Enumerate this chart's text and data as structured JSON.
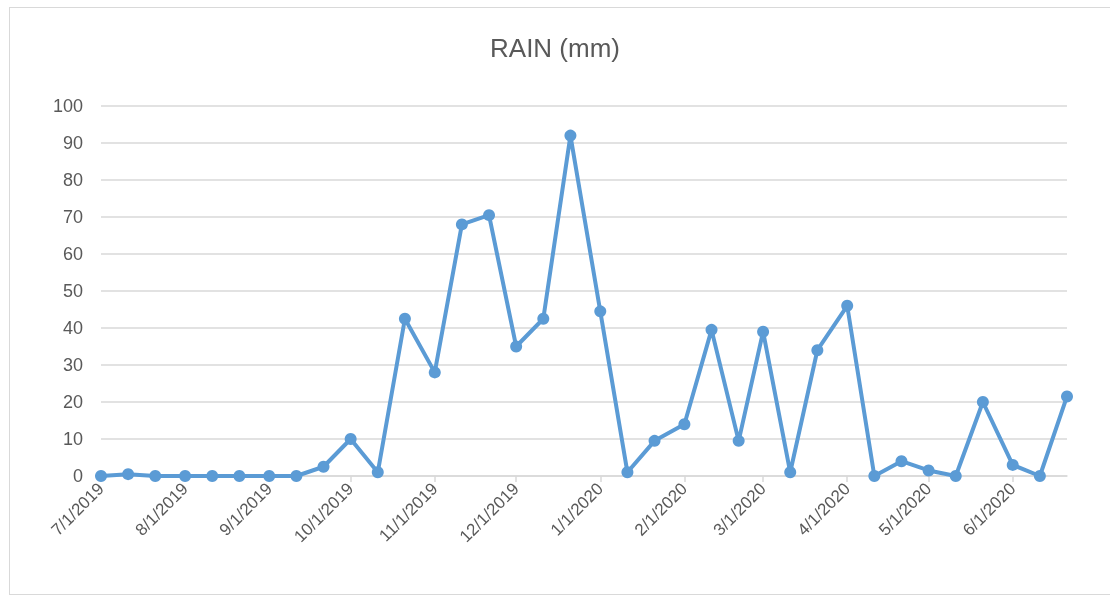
{
  "chart_data": {
    "type": "line",
    "title": "RAIN (mm)",
    "x": [
      "2019-07-01",
      "2019-07-11",
      "2019-07-21",
      "2019-08-01",
      "2019-08-11",
      "2019-08-21",
      "2019-09-01",
      "2019-09-11",
      "2019-09-21",
      "2019-10-01",
      "2019-10-11",
      "2019-10-21",
      "2019-11-01",
      "2019-11-11",
      "2019-11-21",
      "2019-12-01",
      "2019-12-11",
      "2019-12-21",
      "2020-01-01",
      "2020-01-11",
      "2020-01-21",
      "2020-02-01",
      "2020-02-11",
      "2020-02-21",
      "2020-03-01",
      "2020-03-11",
      "2020-03-21",
      "2020-04-01",
      "2020-04-11",
      "2020-04-21",
      "2020-05-01",
      "2020-05-11",
      "2020-05-21",
      "2020-06-01",
      "2020-06-11",
      "2020-06-21"
    ],
    "values": [
      0,
      0.5,
      0,
      0,
      0,
      0,
      0,
      0,
      2.5,
      10,
      1,
      42.5,
      28,
      68,
      70.5,
      35,
      42.5,
      92,
      44.5,
      1,
      9.5,
      14,
      39.5,
      9.5,
      39,
      1,
      34,
      46,
      0,
      4,
      1.5,
      0,
      20,
      3,
      0,
      21.5
    ],
    "color": "#5b9bd5",
    "xlim": [
      "2019-07-01",
      "2020-06-21"
    ],
    "xticks": [
      {
        "value": "2019-07-01",
        "label": "7/1/2019"
      },
      {
        "value": "2019-08-01",
        "label": "8/1/2019"
      },
      {
        "value": "2019-09-01",
        "label": "9/1/2019"
      },
      {
        "value": "2019-10-01",
        "label": "10/1/2019"
      },
      {
        "value": "2019-11-01",
        "label": "11/1/2019"
      },
      {
        "value": "2019-12-01",
        "label": "12/1/2019"
      },
      {
        "value": "2020-01-01",
        "label": "1/1/2020"
      },
      {
        "value": "2020-02-01",
        "label": "2/1/2020"
      },
      {
        "value": "2020-03-01",
        "label": "3/1/2020"
      },
      {
        "value": "2020-04-01",
        "label": "4/1/2020"
      },
      {
        "value": "2020-05-01",
        "label": "5/1/2020"
      },
      {
        "value": "2020-06-01",
        "label": "6/1/2020"
      }
    ],
    "ylim": [
      0,
      100
    ],
    "yticks": [
      0,
      10,
      20,
      30,
      40,
      50,
      60,
      70,
      80,
      90,
      100
    ],
    "grid": "y",
    "marker": "circle",
    "line_style": "solid"
  }
}
